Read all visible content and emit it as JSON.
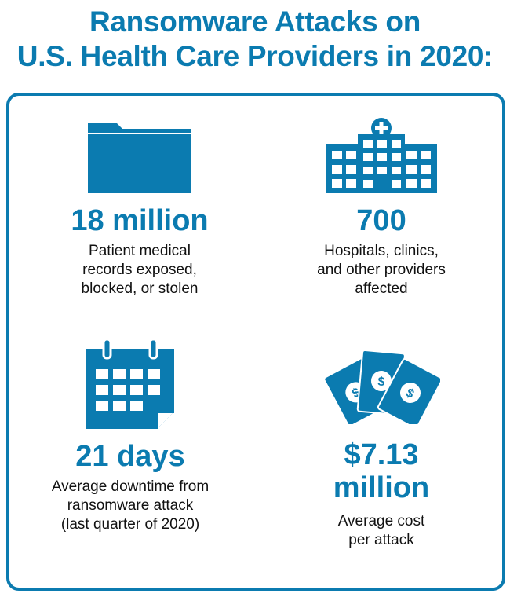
{
  "title": {
    "line1": "Ransomware Attacks on",
    "line2": "U.S. Health Care Providers in 2020:"
  },
  "colors": {
    "accent": "#0b7bb0"
  },
  "stats": [
    {
      "icon": "folder-icon",
      "value": "18 million",
      "desc": [
        "Patient medical",
        "records exposed,",
        "blocked, or stolen"
      ]
    },
    {
      "icon": "hospital-icon",
      "value": "700",
      "desc": [
        "Hospitals, clinics,",
        "and other providers",
        "affected"
      ]
    },
    {
      "icon": "calendar-icon",
      "value": "21 days",
      "desc": [
        "Average downtime from",
        "ransomware attack",
        "(last quarter of 2020)"
      ]
    },
    {
      "icon": "money-icon",
      "value": "$7.13",
      "value2": "million",
      "desc": [
        "Average cost",
        "per attack"
      ]
    }
  ]
}
